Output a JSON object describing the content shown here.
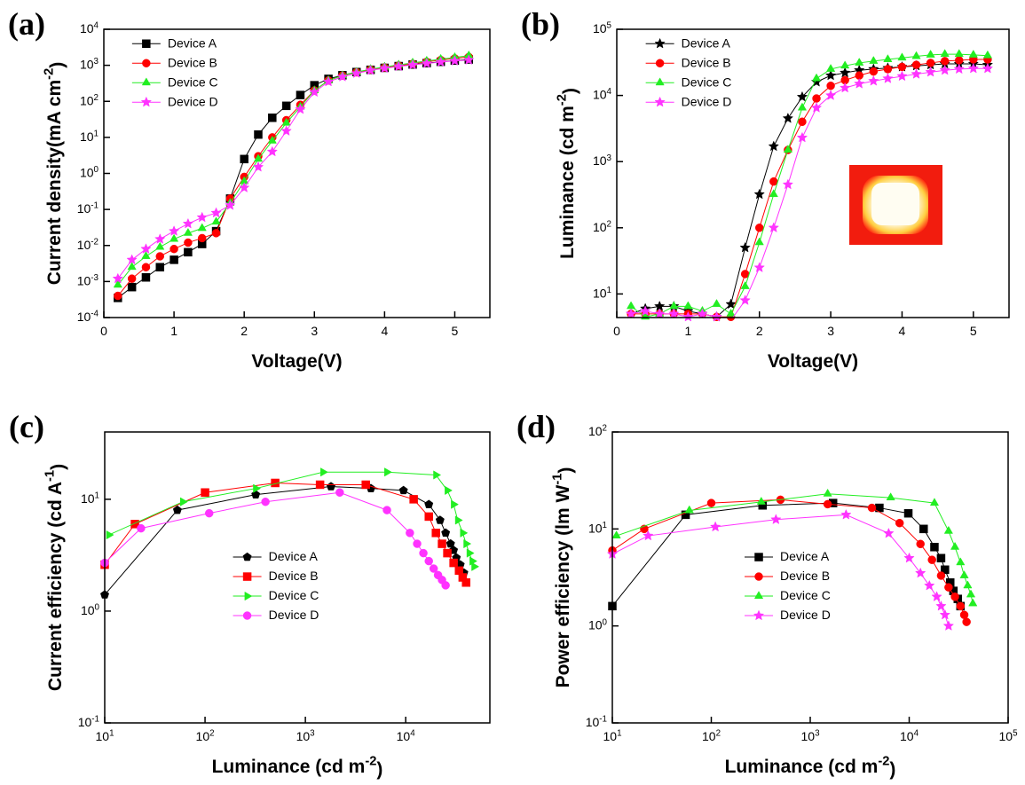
{
  "chart_data": [
    {
      "type": "line",
      "panel_label": "(a)",
      "xlabel": "Voltage(V)",
      "ylabel": "Current density(mA cm^-2)",
      "xscale": "linear",
      "yscale": "log",
      "legend": "upper left",
      "xlim": [
        0,
        5.5
      ],
      "ylim": [
        0.0001,
        10000
      ],
      "xticks": [
        0,
        1,
        2,
        3,
        4,
        5
      ],
      "yticks": [
        {
          "value": 0.0001,
          "label": "10^-4"
        },
        {
          "value": 0.001,
          "label": "10^-3"
        },
        {
          "value": 0.01,
          "label": "10^-2"
        },
        {
          "value": 0.1,
          "label": "10^-1"
        },
        {
          "value": 1,
          "label": "10^0"
        },
        {
          "value": 10,
          "label": "10^1"
        },
        {
          "value": 100,
          "label": "10^2"
        },
        {
          "value": 1000,
          "label": "10^3"
        },
        {
          "value": 10000,
          "label": "10^4"
        }
      ],
      "x": [
        0.2,
        0.4,
        0.6,
        0.8,
        1.0,
        1.2,
        1.4,
        1.6,
        1.8,
        2.0,
        2.2,
        2.4,
        2.6,
        2.8,
        3.0,
        3.2,
        3.4,
        3.6,
        3.8,
        4.0,
        4.2,
        4.4,
        4.6,
        4.8,
        5.0,
        5.2
      ],
      "series": [
        {
          "name": "Device A",
          "color": "#000000",
          "marker": "square",
          "values": [
            0.00035,
            0.0007,
            0.0013,
            0.0025,
            0.004,
            0.0065,
            0.011,
            0.025,
            0.2,
            2.5,
            12,
            35,
            75,
            150,
            280,
            420,
            530,
            650,
            750,
            850,
            950,
            1050,
            1150,
            1250,
            1350,
            1450
          ]
        },
        {
          "name": "Device B",
          "color": "#ff0000",
          "marker": "circle",
          "values": [
            0.0004,
            0.0012,
            0.0025,
            0.005,
            0.008,
            0.012,
            0.016,
            0.022,
            0.2,
            0.8,
            3,
            10,
            30,
            80,
            200,
            380,
            520,
            640,
            760,
            870,
            980,
            1100,
            1250,
            1400,
            1550,
            1700
          ]
        },
        {
          "name": "Device C",
          "color": "#22ee22",
          "marker": "triangle",
          "values": [
            0.0008,
            0.0025,
            0.005,
            0.009,
            0.015,
            0.022,
            0.03,
            0.045,
            0.15,
            0.6,
            2.5,
            8,
            25,
            70,
            200,
            380,
            520,
            650,
            780,
            900,
            1030,
            1170,
            1320,
            1480,
            1650,
            1850
          ]
        },
        {
          "name": "Device D",
          "color": "#ff33ff",
          "marker": "star",
          "values": [
            0.0012,
            0.004,
            0.008,
            0.015,
            0.025,
            0.04,
            0.06,
            0.08,
            0.13,
            0.4,
            1.5,
            4,
            15,
            60,
            180,
            350,
            480,
            600,
            720,
            830,
            930,
            1030,
            1130,
            1230,
            1330,
            1400
          ]
        }
      ]
    },
    {
      "type": "line",
      "panel_label": "(b)",
      "xlabel": "Voltage(V)",
      "ylabel": "Luminance (cd m^-2)",
      "xscale": "linear",
      "yscale": "log",
      "legend": "upper left",
      "xlim": [
        0,
        5.5
      ],
      "ylim": [
        4.4,
        100000
      ],
      "xticks": [
        0,
        1,
        2,
        3,
        4,
        5
      ],
      "yticks": [
        {
          "value": 10,
          "label": "10^1"
        },
        {
          "value": 100,
          "label": "10^2"
        },
        {
          "value": 1000,
          "label": "10^3"
        },
        {
          "value": 10000,
          "label": "10^4"
        },
        {
          "value": 100000,
          "label": "10^5"
        }
      ],
      "x": [
        0.2,
        0.4,
        0.6,
        0.8,
        1.0,
        1.2,
        1.4,
        1.6,
        1.8,
        2.0,
        2.2,
        2.4,
        2.6,
        2.8,
        3.0,
        3.2,
        3.4,
        3.6,
        3.8,
        4.0,
        4.2,
        4.4,
        4.6,
        4.8,
        5.0,
        5.2
      ],
      "series": [
        {
          "name": "Device A",
          "color": "#000000",
          "marker": "star",
          "values": [
            5,
            6,
            6.5,
            6.5,
            5.5,
            5,
            4.5,
            7,
            50,
            320,
            1700,
            4500,
            9500,
            16000,
            20000,
            22000,
            24000,
            25000,
            26000,
            27000,
            28000,
            29000,
            30000,
            30000,
            30000,
            29000
          ]
        },
        {
          "name": "Device B",
          "color": "#ff0000",
          "marker": "circle",
          "values": [
            5,
            5,
            5,
            5,
            5,
            5,
            4.5,
            4.5,
            20,
            100,
            500,
            1500,
            4000,
            9000,
            14000,
            17000,
            20000,
            23000,
            25000,
            27000,
            29000,
            31000,
            33000,
            34000,
            35000,
            35000
          ]
        },
        {
          "name": "Device C",
          "color": "#22ee22",
          "marker": "triangle",
          "values": [
            6.5,
            4.5,
            5,
            6.5,
            6.5,
            5.5,
            7,
            5,
            13,
            60,
            320,
            1500,
            6500,
            18000,
            25000,
            28000,
            31000,
            33000,
            35000,
            37000,
            39000,
            41000,
            42000,
            42000,
            41000,
            40000
          ]
        },
        {
          "name": "Device D",
          "color": "#ff33ff",
          "marker": "star",
          "values": [
            5,
            5.5,
            5,
            5,
            4.5,
            5,
            4.5,
            4,
            8,
            25,
            100,
            450,
            2300,
            6500,
            10000,
            13000,
            15000,
            16500,
            18000,
            19500,
            21000,
            22500,
            24000,
            25000,
            25500,
            25500
          ]
        }
      ]
    },
    {
      "type": "line",
      "panel_label": "(c)",
      "xlabel": "Luminance (cd m^-2)",
      "ylabel": "Current efficiency (cd A^-1)",
      "xscale": "log",
      "yscale": "log",
      "legend": "center",
      "xlim": [
        10,
        69000
      ],
      "ylim": [
        0.1,
        40
      ],
      "xticks": [
        {
          "value": 10,
          "label": "10^1"
        },
        {
          "value": 100,
          "label": "10^2"
        },
        {
          "value": 1000,
          "label": "10^3"
        },
        {
          "value": 10000,
          "label": "10^4"
        }
      ],
      "yticks": [
        {
          "value": 0.1,
          "label": "10^-1"
        },
        {
          "value": 1,
          "label": "10^0"
        },
        {
          "value": 10,
          "label": "10^1"
        }
      ],
      "series": [
        {
          "name": "Device A",
          "color": "#000000",
          "marker": "pentagon",
          "x": [
            10,
            53,
            320,
            1800,
            4500,
            9500,
            17000,
            22000,
            25000,
            28000,
            30000,
            32000,
            35000,
            38000
          ],
          "values": [
            1.4,
            8,
            11,
            13,
            12.5,
            12,
            9,
            6.5,
            5,
            4,
            3.5,
            3,
            2.6,
            2.2
          ]
        },
        {
          "name": "Device B",
          "color": "#ff0000",
          "marker": "square",
          "x": [
            10,
            20,
            100,
            500,
            1400,
            4000,
            12000,
            17000,
            20000,
            23000,
            26000,
            30000,
            34000,
            37000,
            40000
          ],
          "values": [
            2.6,
            6,
            11.5,
            14,
            13.5,
            13.5,
            10,
            7,
            5,
            4,
            3.3,
            2.7,
            2.3,
            2,
            1.8
          ]
        },
        {
          "name": "Device C",
          "color": "#22ee22",
          "marker": "triangle-right",
          "x": [
            11,
            60,
            320,
            1500,
            6500,
            20000,
            26000,
            30000,
            33000,
            37000,
            40000,
            43000,
            46000,
            48000
          ],
          "values": [
            4.8,
            9.5,
            12.5,
            17.5,
            17.5,
            16.5,
            12,
            9,
            6.5,
            5,
            4,
            3.3,
            2.8,
            2.5
          ]
        },
        {
          "name": "Device D",
          "color": "#ff33ff",
          "marker": "circle",
          "x": [
            10,
            23,
            110,
            400,
            2200,
            6500,
            11000,
            13000,
            15000,
            17000,
            19000,
            21000,
            23000,
            25000
          ],
          "values": [
            2.7,
            5.5,
            7.5,
            9.5,
            11.5,
            8,
            5,
            4,
            3.3,
            2.8,
            2.4,
            2.1,
            1.9,
            1.7
          ]
        }
      ]
    },
    {
      "type": "line",
      "panel_label": "(d)",
      "xlabel": "Luminance (cd m^-2)",
      "ylabel": "Power efficiency (lm W^-1)",
      "xscale": "log",
      "yscale": "log",
      "legend": "center",
      "xlim": [
        10,
        100000
      ],
      "ylim": [
        0.1,
        100
      ],
      "xticks": [
        {
          "value": 10,
          "label": "10^1"
        },
        {
          "value": 100,
          "label": "10^2"
        },
        {
          "value": 1000,
          "label": "10^3"
        },
        {
          "value": 10000,
          "label": "10^4"
        },
        {
          "value": 100000,
          "label": "10^5"
        }
      ],
      "yticks": [
        {
          "value": 0.1,
          "label": "10^-1"
        },
        {
          "value": 1,
          "label": "10^0"
        },
        {
          "value": 10,
          "label": "10^1"
        },
        {
          "value": 100,
          "label": "10^2"
        }
      ],
      "series": [
        {
          "name": "Device A",
          "color": "#000000",
          "marker": "square",
          "x": [
            10,
            55,
            330,
            1700,
            5000,
            9800,
            14000,
            18000,
            21000,
            23000,
            26000,
            28000,
            31000,
            33000
          ],
          "values": [
            1.6,
            14,
            17.5,
            18.5,
            16.5,
            14.5,
            10,
            6.5,
            5,
            3.8,
            2.8,
            2.3,
            1.9,
            1.6
          ]
        },
        {
          "name": "Device B",
          "color": "#ff0000",
          "marker": "circle",
          "x": [
            10,
            21,
            100,
            500,
            1500,
            4200,
            8000,
            13000,
            17000,
            21000,
            25000,
            29000,
            33000,
            36000,
            38000
          ],
          "values": [
            6,
            10,
            18.5,
            20,
            18,
            16.5,
            11.5,
            7,
            4.8,
            3.3,
            2.5,
            2,
            1.6,
            1.3,
            1.1
          ]
        },
        {
          "name": "Device C",
          "color": "#22ee22",
          "marker": "triangle",
          "x": [
            11,
            60,
            320,
            1500,
            6500,
            18000,
            25000,
            29000,
            33000,
            36000,
            39000,
            42000,
            44000
          ],
          "values": [
            8.5,
            15.5,
            19,
            23,
            21,
            18.5,
            9.5,
            6.5,
            4.5,
            3.3,
            2.6,
            2.1,
            1.7
          ]
        },
        {
          "name": "Device D",
          "color": "#ff33ff",
          "marker": "star",
          "x": [
            10,
            23,
            110,
            450,
            2300,
            6200,
            10000,
            13000,
            16000,
            19000,
            21000,
            23000,
            25000
          ],
          "values": [
            5.5,
            8.5,
            10.5,
            12.5,
            14,
            9,
            5,
            3.5,
            2.6,
            2,
            1.6,
            1.3,
            1
          ]
        }
      ]
    }
  ]
}
